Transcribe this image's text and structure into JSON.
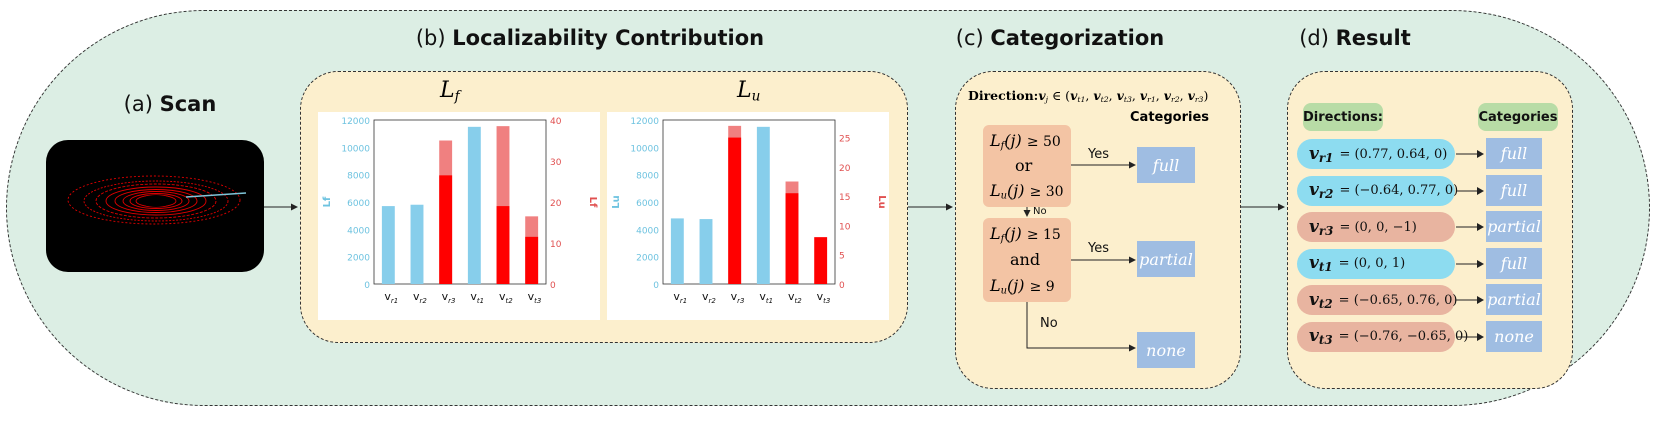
{
  "panels": {
    "a": {
      "prefix": "(a) ",
      "name": "Scan"
    },
    "b": {
      "prefix": "(b) ",
      "name": "Localizability Contribution"
    },
    "c": {
      "prefix": "(c) ",
      "name": "Categorization"
    },
    "d": {
      "prefix": "(d) ",
      "name": "Result"
    }
  },
  "chart_data": [
    {
      "type": "bar",
      "title_main": "L",
      "title_sub": "f",
      "categories": [
        [
          "v",
          "r1"
        ],
        [
          "v",
          "r2"
        ],
        [
          "v",
          "r3"
        ],
        [
          "v",
          "t1"
        ],
        [
          "v",
          "t2"
        ],
        [
          "v",
          "t3"
        ]
      ],
      "ylabel": "Lf",
      "y2label": "Lf",
      "ylim": [
        0,
        12000
      ],
      "y2lim": [
        0,
        40
      ],
      "yticks": [
        "0",
        "2000",
        "4000",
        "6000",
        "8000",
        "10000",
        "12000"
      ],
      "y2ticks": [
        "0",
        "10",
        "20",
        "30",
        "40"
      ],
      "series": [
        {
          "axis": "left",
          "values": [
            5700,
            5800,
            0,
            11500,
            0,
            0
          ]
        },
        {
          "axis": "right",
          "values": [
            0,
            0,
            35,
            0,
            38.5,
            16.5
          ]
        },
        {
          "axis": "right",
          "values": [
            0,
            0,
            26.5,
            0,
            19,
            11.5
          ]
        }
      ],
      "colors": {
        "left": "#87ceeb",
        "right_total": "#f08080",
        "right": "#ff0000"
      }
    },
    {
      "type": "bar",
      "title_main": "L",
      "title_sub": "u",
      "categories": [
        [
          "v",
          "r1"
        ],
        [
          "v",
          "r2"
        ],
        [
          "v",
          "r3"
        ],
        [
          "v",
          "t1"
        ],
        [
          "v",
          "t2"
        ],
        [
          "v",
          "t3"
        ]
      ],
      "ylabel": "Lu",
      "y2label": "Lu",
      "ylim": [
        0,
        12000
      ],
      "y2lim": [
        0,
        28
      ],
      "yticks": [
        "0",
        "2000",
        "4000",
        "6000",
        "8000",
        "10000",
        "12000"
      ],
      "y2ticks": [
        "0",
        "5",
        "10",
        "15",
        "20",
        "25"
      ],
      "series": [
        {
          "axis": "left",
          "values": [
            4800,
            4750,
            0,
            11500,
            0,
            0
          ]
        },
        {
          "axis": "right",
          "values": [
            0,
            0,
            27,
            0,
            17.5,
            0
          ]
        },
        {
          "axis": "right",
          "values": [
            0,
            0,
            25,
            0,
            15.5,
            8
          ]
        }
      ],
      "colors": {
        "left": "#87ceeb",
        "right_total": "#f08080",
        "right": "#ff0000"
      }
    }
  ],
  "categorization": {
    "direction_label": "Direction:",
    "direction_var": "v",
    "direction_sub": "j",
    "direction_set": " ∈ (v",
    "direction_set_items": [
      [
        "v",
        "t1"
      ],
      [
        "v",
        "t2"
      ],
      [
        "v",
        "t3"
      ],
      [
        "v",
        "r1"
      ],
      [
        "v",
        "r2"
      ],
      [
        "v",
        "r3"
      ]
    ],
    "categories_header": "Categories",
    "cond1": {
      "line1": "≥ 50",
      "mid": "or",
      "line2": "≥ 30"
    },
    "cond2": {
      "line1": "≥ 15",
      "mid": "and",
      "line2": "≥ 9"
    },
    "yes1": "Yes",
    "yes2": "Yes",
    "no1": "No",
    "no2": "No",
    "out1": "full",
    "out2": "partial",
    "out3": "none"
  },
  "result": {
    "directions_header": "Directions:",
    "categories_header": "Categories",
    "rows": [
      {
        "v": "v",
        "sub": "r1",
        "value": "= (0.77, 0.64, 0)",
        "category": "full",
        "color": "#8ddcf0"
      },
      {
        "v": "v",
        "sub": "r2",
        "value": "= (−0.64, 0.77, 0)",
        "category": "full",
        "color": "#8ddcf0"
      },
      {
        "v": "v",
        "sub": "r3",
        "value": "= (0, 0, −1)",
        "category": "partial",
        "color": "#e8b4a0"
      },
      {
        "v": "v",
        "sub": "t1",
        "value": "= (0, 0, 1)",
        "category": "full",
        "color": "#8ddcf0"
      },
      {
        "v": "v",
        "sub": "t2",
        "value": "= (−0.65, 0.76, 0)",
        "category": "partial",
        "color": "#e8b4a0"
      },
      {
        "v": "v",
        "sub": "t3",
        "value": "= (−0.76, −0.65, 0)",
        "category": "none",
        "color": "#e8b4a0"
      }
    ]
  }
}
